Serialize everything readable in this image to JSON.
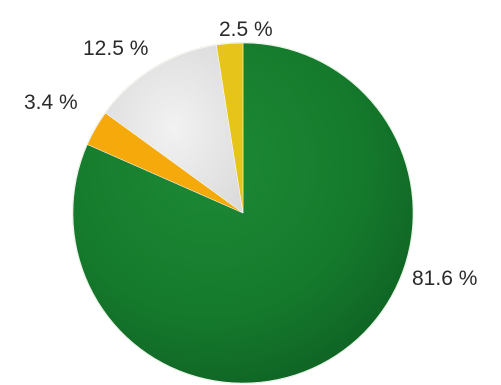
{
  "chart_data": {
    "type": "pie",
    "slices": [
      {
        "label": "81.6 %",
        "value": 81.6,
        "color": "#157a2c"
      },
      {
        "label": "3.4 %",
        "value": 3.4,
        "color": "#f5a90a"
      },
      {
        "label": "12.5 %",
        "value": 12.5,
        "color": "#e6e6e6"
      },
      {
        "label": "2.5 %",
        "value": 2.5,
        "color": "#e6c41a"
      }
    ],
    "start": "top",
    "direction": "clockwise",
    "legend": "none"
  }
}
